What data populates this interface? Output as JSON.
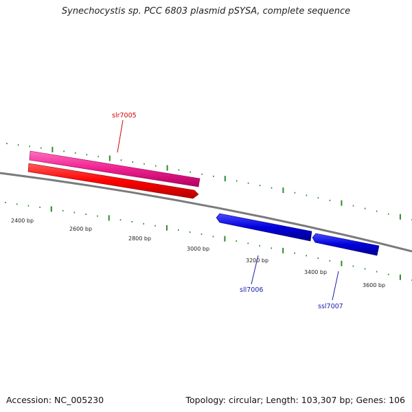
{
  "title": "Synechocystis sp. PCC 6803 plasmid pSYSA, complete sequence",
  "footer": {
    "accession": "Accession: NC_005230",
    "summary": "Topology: circular; Length: 103,307 bp; Genes: 106"
  },
  "colors": {
    "backbone": "#7a7a7a",
    "tick": "#2a8a2a",
    "forward_gene": "#ff0000",
    "forward_cds": "#ee1f8f",
    "reverse_gene": "#0000dd"
  },
  "scale_labels": [
    {
      "text": "2400 bp"
    },
    {
      "text": "2600 bp"
    },
    {
      "text": "2800 bp"
    },
    {
      "text": "3000 bp"
    },
    {
      "text": "3200 bp"
    },
    {
      "text": "3400 bp"
    },
    {
      "text": "3600 bp"
    }
  ],
  "features": [
    {
      "name": "slr7005",
      "strand": "+",
      "label": "slr7005",
      "color": "#d40000"
    },
    {
      "name": "sll7006",
      "strand": "-",
      "label": "sll7006",
      "color": "#1a1aaa"
    },
    {
      "name": "ssl7007",
      "strand": "-",
      "label": "ssl7007",
      "color": "#1a1aaa"
    }
  ]
}
